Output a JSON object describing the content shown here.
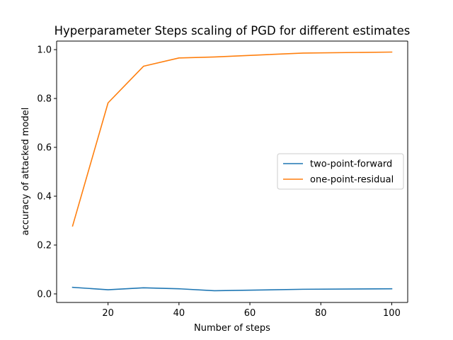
{
  "chart_data": {
    "type": "line",
    "title": "Hyperparameter Steps scaling of PGD for different estimates",
    "xlabel": "Number of steps",
    "ylabel": "accuracy of attacked model",
    "xlim": [
      5.5,
      104.5
    ],
    "ylim": [
      -0.035,
      1.035
    ],
    "xticks": [
      20,
      40,
      60,
      80,
      100
    ],
    "yticks": [
      0.0,
      0.2,
      0.4,
      0.6,
      0.8,
      1.0
    ],
    "yticks_labels": [
      "0.0",
      "0.2",
      "0.4",
      "0.6",
      "0.8",
      "1.0"
    ],
    "grid": false,
    "legend_position": "center-right",
    "x": [
      10,
      20,
      30,
      40,
      50,
      75,
      100
    ],
    "series": [
      {
        "name": "two-point-forward",
        "color": "#1f77b4",
        "values": [
          0.027,
          0.017,
          0.025,
          0.021,
          0.013,
          0.019,
          0.021
        ]
      },
      {
        "name": "one-point-residual",
        "color": "#ff7f0e",
        "values": [
          0.278,
          0.782,
          0.932,
          0.966,
          0.97,
          0.986,
          0.99
        ]
      }
    ]
  }
}
